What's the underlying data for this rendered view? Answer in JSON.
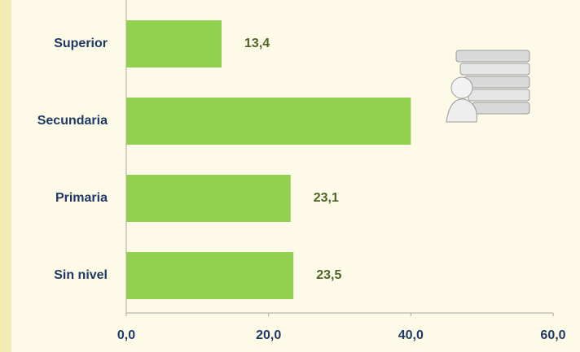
{
  "chart_data": {
    "type": "bar",
    "orientation": "horizontal",
    "categories": [
      "Superior",
      "Secundaria",
      "Primaria",
      "Sin nivel"
    ],
    "values": [
      13.4,
      40.0,
      23.1,
      23.5
    ],
    "value_labels": [
      "13,4",
      null,
      "23,1",
      "23,5"
    ],
    "color": "#92d050",
    "xlim": [
      0,
      60
    ],
    "xticks": [
      {
        "value": 0,
        "label": "0,0"
      },
      {
        "value": 20,
        "label": "20,0"
      },
      {
        "value": 40,
        "label": "40,0"
      },
      {
        "value": 60,
        "label": "60,0"
      }
    ],
    "grid": false
  }
}
